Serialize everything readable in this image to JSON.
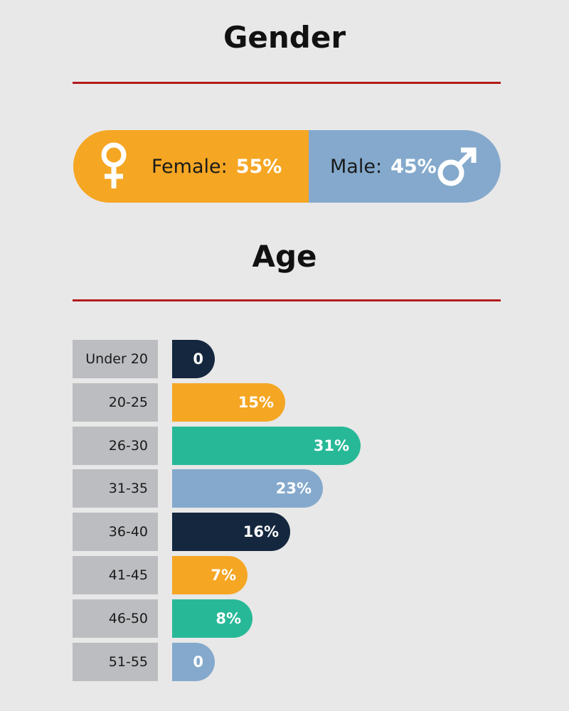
{
  "gender": {
    "title": "Gender",
    "female": {
      "label": "Female:",
      "value_text": "55%",
      "value": 55,
      "color": "#f5a623",
      "icon": "female-symbol-icon"
    },
    "male": {
      "label": "Male:",
      "value_text": "45%",
      "value": 45,
      "color": "#84a9cc",
      "icon": "male-symbol-icon"
    }
  },
  "age": {
    "title": "Age"
  },
  "colors": {
    "rule": "#b31b1b",
    "category_bg": "#bcbdc0",
    "background": "#e8e8e8"
  },
  "chart_data": [
    {
      "type": "bar",
      "title": "Gender",
      "categories": [
        "Female",
        "Male"
      ],
      "values": [
        55,
        45
      ],
      "unit": "%",
      "colors": [
        "#f5a623",
        "#84a9cc"
      ]
    },
    {
      "type": "bar",
      "title": "Age",
      "orientation": "horizontal",
      "categories": [
        "Under 20",
        "20-25",
        "26-30",
        "31-35",
        "36-40",
        "41-45",
        "46-50",
        "51-55"
      ],
      "values": [
        0,
        15,
        31,
        23,
        16,
        7,
        8,
        0
      ],
      "labels": [
        "0",
        "15%",
        "31%",
        "23%",
        "16%",
        "7%",
        "8%",
        "0"
      ],
      "colors": [
        "#14273f",
        "#f5a623",
        "#27b897",
        "#84a9cc",
        "#14273f",
        "#f5a623",
        "#27b897",
        "#84a9cc"
      ],
      "grid": false
    }
  ]
}
